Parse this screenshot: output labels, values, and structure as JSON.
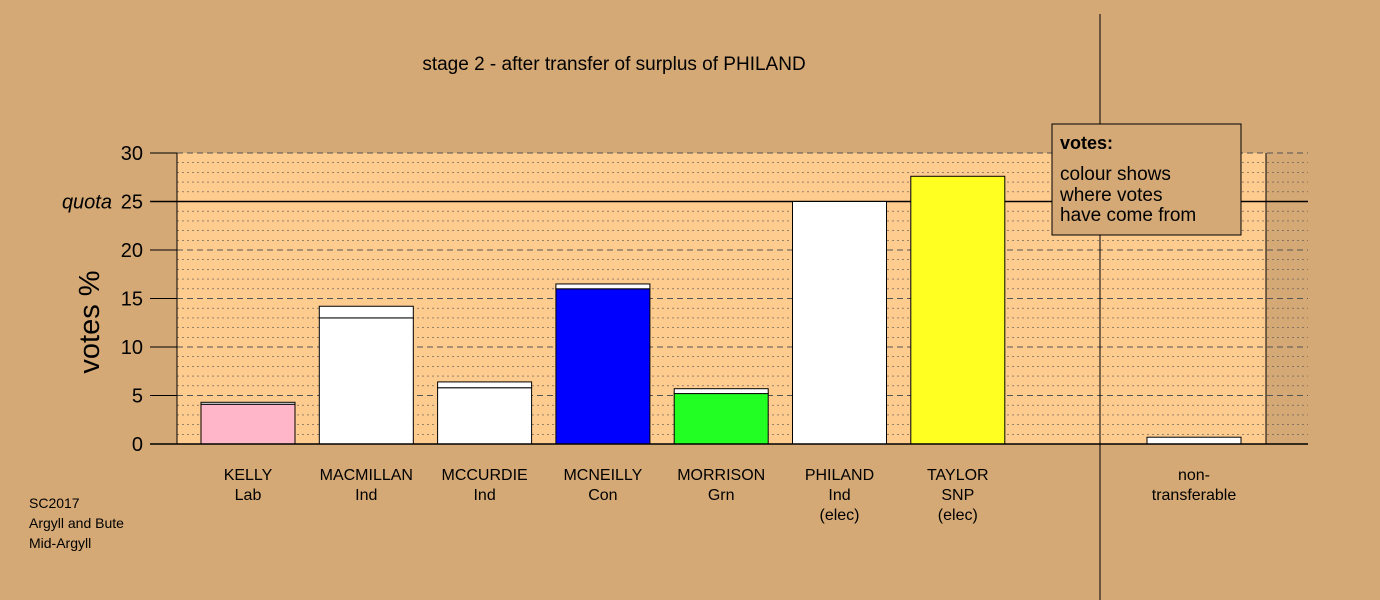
{
  "chart_data": {
    "type": "bar",
    "title": "stage 2 - after transfer of surplus of PHILAND",
    "ylabel": "votes %",
    "ylim": [
      0,
      30
    ],
    "yticks": [
      0,
      5,
      10,
      15,
      20,
      25,
      30
    ],
    "quota": {
      "label": "quota",
      "value": 25
    },
    "categories": [
      {
        "name": "KELLY",
        "party": "Lab",
        "status": ""
      },
      {
        "name": "MACMILLAN",
        "party": "Ind",
        "status": ""
      },
      {
        "name": "MCCURDIE",
        "party": "Ind",
        "status": ""
      },
      {
        "name": "MCNEILLY",
        "party": "Con",
        "status": ""
      },
      {
        "name": "MORRISON",
        "party": "Grn",
        "status": ""
      },
      {
        "name": "PHILAND",
        "party": "Ind",
        "status": "(elec)"
      },
      {
        "name": "TAYLOR",
        "party": "SNP",
        "status": "(elec)"
      }
    ],
    "segments": [
      [
        {
          "value": 4.1,
          "color": "#FFB6C8"
        },
        {
          "value": 0.2,
          "color": "#FFFFFF"
        }
      ],
      [
        {
          "value": 13.0,
          "color": "#FFFFFF"
        },
        {
          "value": 1.2,
          "color": "#FFFFFF"
        }
      ],
      [
        {
          "value": 5.8,
          "color": "#FFFFFF"
        },
        {
          "value": 0.6,
          "color": "#FFFFFF"
        }
      ],
      [
        {
          "value": 16.0,
          "color": "#0000FF"
        },
        {
          "value": 0.5,
          "color": "#FFFFFF"
        }
      ],
      [
        {
          "value": 5.2,
          "color": "#22FF22"
        },
        {
          "value": 0.5,
          "color": "#FFFFFF"
        }
      ],
      [
        {
          "value": 25.0,
          "color": "#FFFFFF"
        }
      ],
      [
        {
          "value": 27.6,
          "color": "#FFFF22"
        }
      ]
    ],
    "non_transferable": {
      "label_line1": "non-",
      "label_line2": "transferable",
      "value": 0.7,
      "color": "#FFFFFF"
    },
    "legend": {
      "title": "votes:",
      "lines": [
        "colour shows",
        "where votes",
        "have come from"
      ],
      "placement": "top-right"
    },
    "colors": {
      "page": "#D4A976",
      "plot": "#FFCC90",
      "grid": "#555555"
    }
  },
  "footer": {
    "lines": [
      "SC2017",
      "Argyll and Bute",
      "Mid-Argyll"
    ]
  }
}
